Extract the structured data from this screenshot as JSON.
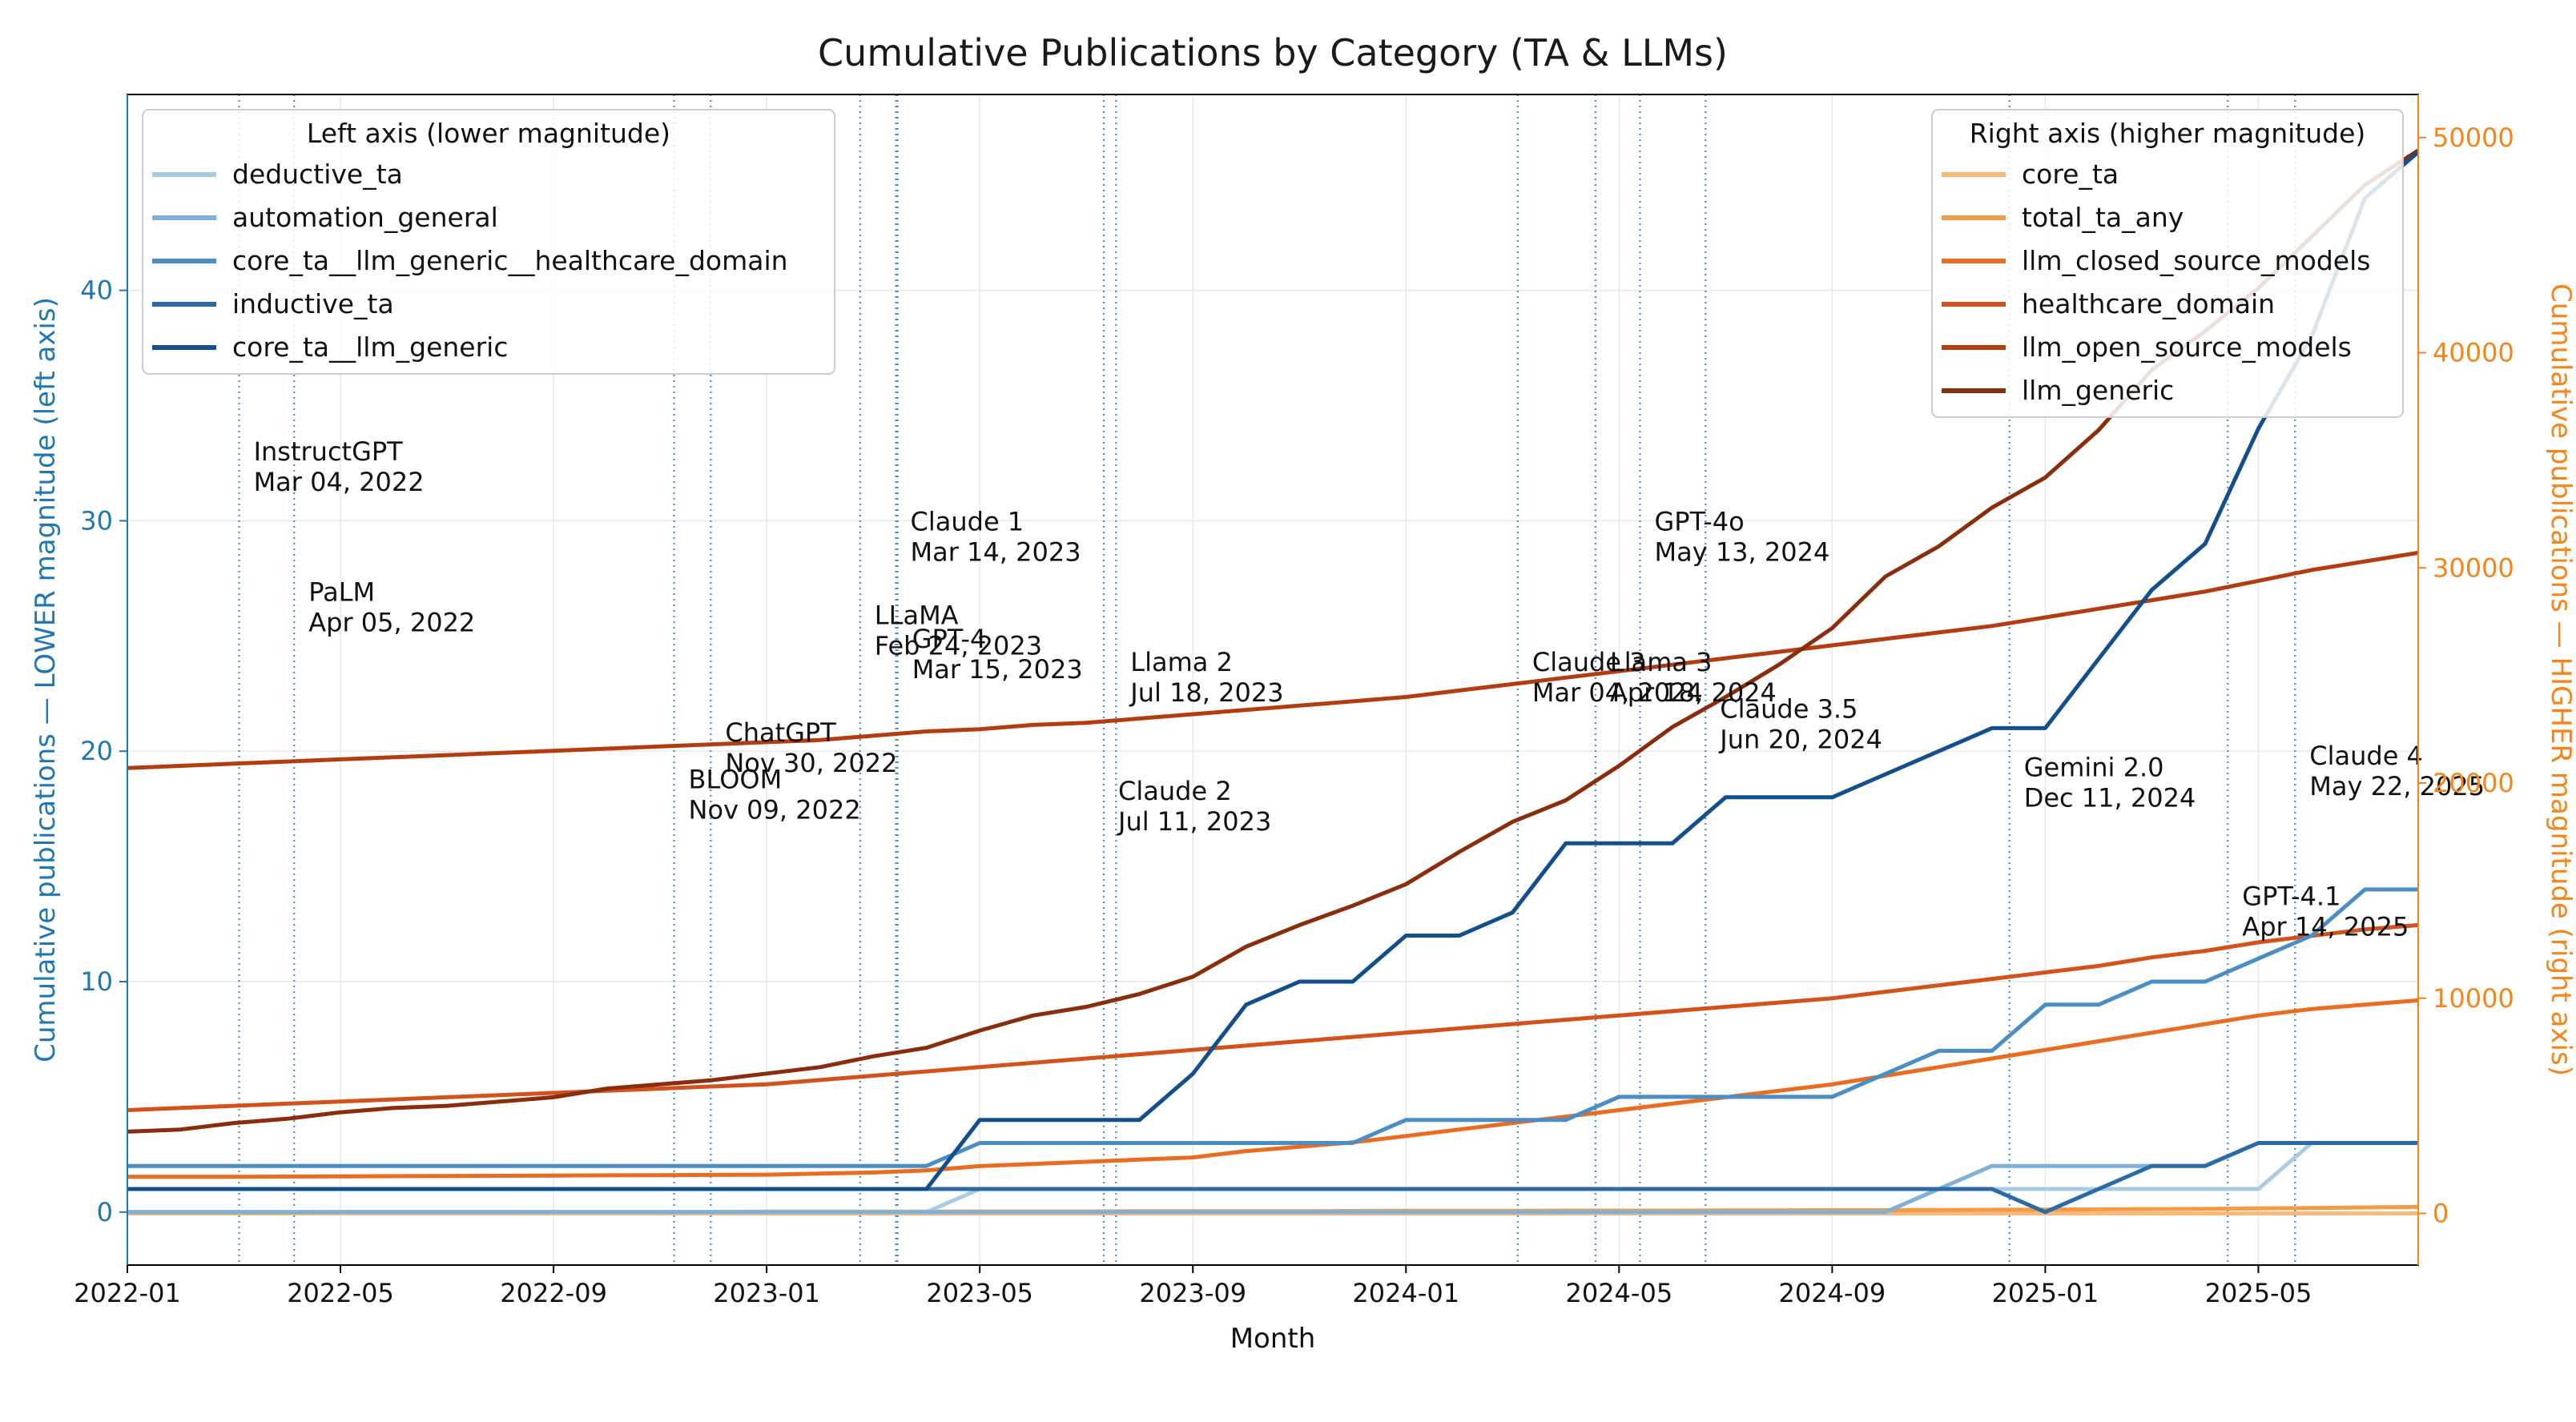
{
  "colors": {
    "left_axis": "#1f77b4",
    "right_axis": "#f58518",
    "event_line": "#4a8cc4",
    "grid": "#e8e8e8"
  },
  "chart_data": {
    "type": "line",
    "title": "Cumulative Publications by Category (TA & LLMs)",
    "xlabel": "Month",
    "ylabel_left": "Cumulative publications — LOWER magnitude (left axis)",
    "ylabel_right": "Cumulative publications — HIGHER magnitude (right axis)",
    "grid": true,
    "x_range": [
      "2022-01",
      "2025-08"
    ],
    "x_ticks": [
      "2022-01",
      "2022-05",
      "2022-09",
      "2023-01",
      "2023-05",
      "2023-09",
      "2024-01",
      "2024-05",
      "2024-09",
      "2025-01",
      "2025-05"
    ],
    "y_left_range": [
      -2.3,
      48.5
    ],
    "y_left_ticks": [
      0,
      10,
      20,
      30,
      40
    ],
    "y_right_range": [
      -2400,
      52000
    ],
    "y_right_ticks": [
      0,
      10000,
      20000,
      30000,
      40000,
      50000
    ],
    "months": [
      "2022-01",
      "2022-02",
      "2022-03",
      "2022-04",
      "2022-05",
      "2022-06",
      "2022-07",
      "2022-08",
      "2022-09",
      "2022-10",
      "2022-11",
      "2022-12",
      "2023-01",
      "2023-02",
      "2023-03",
      "2023-04",
      "2023-05",
      "2023-06",
      "2023-07",
      "2023-08",
      "2023-09",
      "2023-10",
      "2023-11",
      "2023-12",
      "2024-01",
      "2024-02",
      "2024-03",
      "2024-04",
      "2024-05",
      "2024-06",
      "2024-07",
      "2024-08",
      "2024-09",
      "2024-10",
      "2024-11",
      "2024-12",
      "2025-01",
      "2025-02",
      "2025-03",
      "2025-04",
      "2025-05",
      "2025-06",
      "2025-07",
      "2025-08"
    ],
    "legend_left": {
      "title": "Left axis (lower magnitude)",
      "placement": "top-left"
    },
    "legend_right": {
      "title": "Right axis (higher magnitude)",
      "placement": "top-right"
    },
    "series_left": [
      {
        "name": "deductive_ta",
        "color": "#a9cce3",
        "values": [
          0,
          0,
          0,
          0,
          0,
          0,
          0,
          0,
          0,
          0,
          0,
          0,
          0,
          0,
          0,
          0,
          1,
          1,
          1,
          1,
          1,
          1,
          1,
          1,
          1,
          1,
          1,
          1,
          1,
          1,
          1,
          1,
          1,
          1,
          1,
          1,
          1,
          1,
          1,
          1,
          1,
          3,
          3,
          3
        ]
      },
      {
        "name": "automation_general",
        "color": "#7fb1d8",
        "values": [
          0,
          0,
          0,
          0,
          0,
          0,
          0,
          0,
          0,
          0,
          0,
          0,
          0,
          0,
          0,
          0,
          0,
          0,
          0,
          0,
          0,
          0,
          0,
          0,
          0,
          0,
          0,
          0,
          0,
          0,
          0,
          0,
          0,
          0,
          1,
          2,
          2,
          2,
          2,
          2,
          3,
          3,
          3,
          3
        ]
      },
      {
        "name": "core_ta__llm_generic__healthcare_domain",
        "color": "#4a8ec4",
        "values": [
          2,
          2,
          2,
          2,
          2,
          2,
          2,
          2,
          2,
          2,
          2,
          2,
          2,
          2,
          2,
          2,
          3,
          3,
          3,
          3,
          3,
          3,
          3,
          3,
          4,
          4,
          4,
          4,
          5,
          5,
          5,
          5,
          5,
          6,
          7,
          7,
          9,
          9,
          10,
          10,
          11,
          12,
          14,
          14
        ]
      },
      {
        "name": "inductive_ta",
        "color": "#2b6aa8",
        "values": [
          1,
          1,
          1,
          1,
          1,
          1,
          1,
          1,
          1,
          1,
          1,
          1,
          1,
          1,
          1,
          1,
          1,
          1,
          1,
          1,
          1,
          1,
          1,
          1,
          1,
          1,
          1,
          1,
          1,
          1,
          1,
          1,
          1,
          1,
          1,
          1,
          0,
          1,
          2,
          2,
          3,
          3,
          3,
          3
        ]
      },
      {
        "name": "core_ta__llm_generic",
        "color": "#134f8c",
        "values": [
          1,
          1,
          1,
          1,
          1,
          1,
          1,
          1,
          1,
          1,
          1,
          1,
          1,
          1,
          1,
          1,
          4,
          4,
          4,
          4,
          6,
          9,
          10,
          10,
          12,
          12,
          13,
          16,
          16,
          16,
          18,
          18,
          18,
          19,
          20,
          21,
          21,
          24,
          27,
          29,
          34,
          38,
          44,
          46
        ]
      }
    ],
    "series_right": [
      {
        "name": "core_ta",
        "color": "#f9b97a",
        "values": [
          0,
          0,
          0,
          0,
          0,
          0,
          0,
          0,
          0,
          0,
          0,
          0,
          0,
          0,
          0,
          0,
          0,
          0,
          0,
          0,
          0,
          0,
          0,
          0,
          0,
          0,
          0,
          0,
          0,
          0,
          0,
          0,
          0,
          0,
          0,
          0,
          0,
          0,
          0,
          0,
          0,
          0,
          0,
          0
        ]
      },
      {
        "name": "total_ta_any",
        "color": "#f59a45",
        "values": [
          50,
          50,
          50,
          50,
          60,
          60,
          60,
          60,
          70,
          70,
          70,
          70,
          80,
          80,
          80,
          80,
          90,
          90,
          90,
          100,
          100,
          100,
          100,
          110,
          120,
          120,
          120,
          130,
          130,
          130,
          140,
          140,
          150,
          150,
          160,
          170,
          180,
          190,
          200,
          210,
          230,
          250,
          280,
          300
        ]
      },
      {
        "name": "llm_closed_source_models",
        "color": "#ea6c1f",
        "values": [
          1700,
          1700,
          1700,
          1710,
          1720,
          1730,
          1740,
          1750,
          1760,
          1770,
          1780,
          1790,
          1800,
          1850,
          1900,
          2000,
          2200,
          2300,
          2400,
          2500,
          2600,
          2900,
          3100,
          3300,
          3600,
          3900,
          4200,
          4500,
          4800,
          5100,
          5400,
          5700,
          6000,
          6400,
          6800,
          7200,
          7600,
          8000,
          8400,
          8800,
          9200,
          9500,
          9700,
          9900
        ]
      },
      {
        "name": "healthcare_domain",
        "color": "#d4521a",
        "values": [
          4800,
          4900,
          5000,
          5100,
          5200,
          5300,
          5400,
          5500,
          5600,
          5700,
          5800,
          5900,
          6000,
          6200,
          6400,
          6600,
          6800,
          7000,
          7200,
          7400,
          7600,
          7800,
          8000,
          8200,
          8400,
          8600,
          8800,
          9000,
          9200,
          9400,
          9600,
          9800,
          10000,
          10300,
          10600,
          10900,
          11200,
          11500,
          11900,
          12200,
          12600,
          12900,
          13200,
          13400
        ]
      },
      {
        "name": "llm_open_source_models",
        "color": "#b33d11",
        "values": [
          20700,
          20800,
          20900,
          21000,
          21100,
          21200,
          21300,
          21400,
          21500,
          21600,
          21700,
          21800,
          21900,
          22000,
          22200,
          22400,
          22500,
          22700,
          22800,
          23000,
          23200,
          23400,
          23600,
          23800,
          24000,
          24300,
          24600,
          24900,
          25200,
          25500,
          25800,
          26100,
          26400,
          26700,
          27000,
          27300,
          27700,
          28100,
          28500,
          28900,
          29400,
          29900,
          30300,
          30700
        ]
      },
      {
        "name": "llm_generic",
        "color": "#8a2d0c",
        "values": [
          3800,
          3900,
          4200,
          4400,
          4700,
          4900,
          5000,
          5200,
          5400,
          5800,
          6000,
          6200,
          6500,
          6800,
          7300,
          7700,
          8500,
          9200,
          9600,
          10200,
          11000,
          12400,
          13400,
          14300,
          15300,
          16800,
          18200,
          19200,
          20800,
          22600,
          24000,
          25500,
          27200,
          29600,
          31000,
          32800,
          34200,
          36400,
          39200,
          41000,
          43000,
          45400,
          47800,
          49400
        ]
      }
    ],
    "events": [
      {
        "name": "InstructGPT",
        "date": "Mar 04, 2022",
        "x": "2022-03-04"
      },
      {
        "name": "PaLM",
        "date": "Apr 05, 2022",
        "x": "2022-04-05"
      },
      {
        "name": "BLOOM",
        "date": "Nov 09, 2022",
        "x": "2022-11-09"
      },
      {
        "name": "ChatGPT",
        "date": "Nov 30, 2022",
        "x": "2022-11-30"
      },
      {
        "name": "LLaMA",
        "date": "Feb 24, 2023",
        "x": "2023-02-24"
      },
      {
        "name": "Claude 1",
        "date": "Mar 14, 2023",
        "x": "2023-03-14"
      },
      {
        "name": "GPT-4",
        "date": "Mar 15, 2023",
        "x": "2023-03-15"
      },
      {
        "name": "Claude 2",
        "date": "Jul 11, 2023",
        "x": "2023-07-11"
      },
      {
        "name": "Llama 2",
        "date": "Jul 18, 2023",
        "x": "2023-07-18"
      },
      {
        "name": "Claude 3",
        "date": "Mar 04, 2024",
        "x": "2024-03-04"
      },
      {
        "name": "Llama 3",
        "date": "Apr 18, 2024",
        "x": "2024-04-18"
      },
      {
        "name": "GPT-4o",
        "date": "May 13, 2024",
        "x": "2024-05-13"
      },
      {
        "name": "Claude 3.5",
        "date": "Jun 20, 2024",
        "x": "2024-06-20"
      },
      {
        "name": "Gemini 2.0",
        "date": "Dec 11, 2024",
        "x": "2024-12-11"
      },
      {
        "name": "GPT-4.1",
        "date": "Apr 14, 2025",
        "x": "2025-04-14"
      },
      {
        "name": "Claude 4",
        "date": "May 22, 2025",
        "x": "2025-05-22"
      }
    ]
  }
}
